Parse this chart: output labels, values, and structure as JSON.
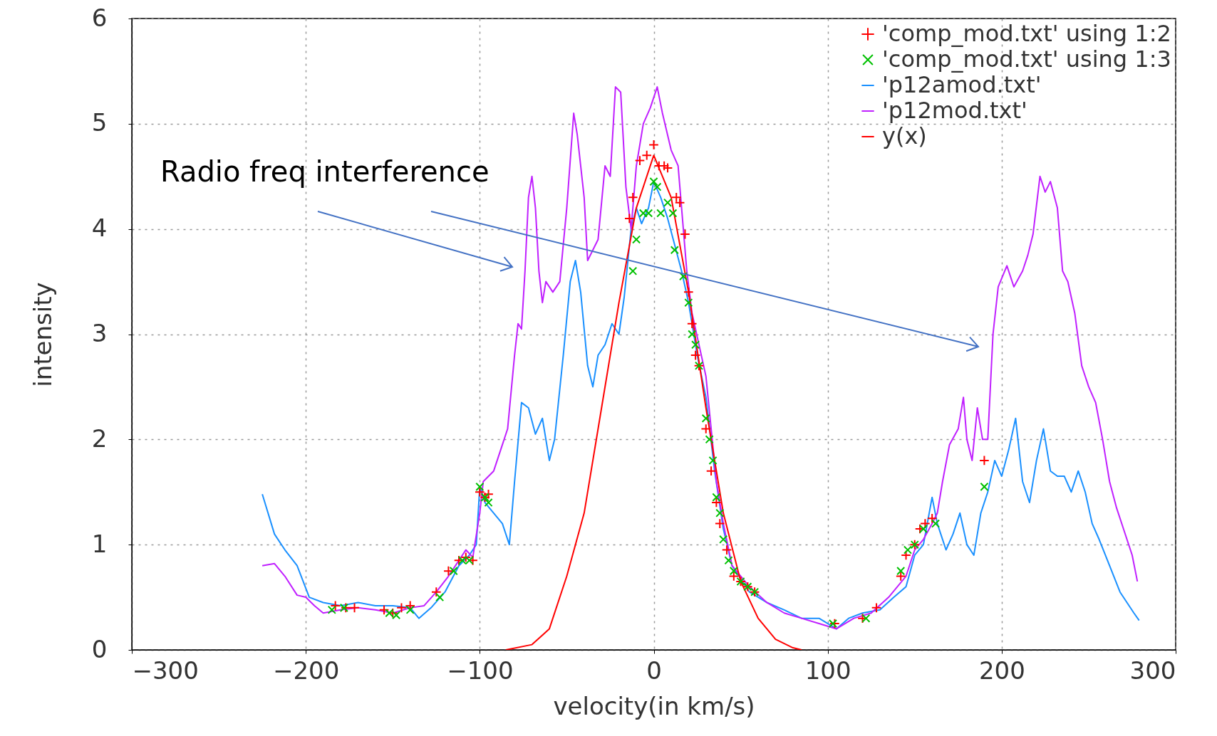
{
  "chart_data": {
    "type": "line",
    "xlabel": "velocity(in km/s)",
    "ylabel": "intensity",
    "xlim": [
      -300,
      300
    ],
    "ylim": [
      0,
      6
    ],
    "xticks": [
      -300,
      -200,
      -100,
      0,
      100,
      200,
      300
    ],
    "yticks": [
      0,
      1,
      2,
      3,
      4,
      5,
      6
    ],
    "grid": true,
    "legend": "top right",
    "annotations": [
      "Radio freq interference"
    ],
    "series": [
      {
        "name": "'comp_mod.txt' using 1:2",
        "type": "scatter",
        "marker": "cross",
        "color": "#ff0000",
        "x": [
          -183,
          -177,
          -172,
          -155,
          -150,
          -145,
          -140,
          -125,
          -118,
          -112,
          -108,
          -104,
          -100,
          -97,
          -95,
          -14,
          -12,
          -8,
          -4,
          0,
          3,
          6,
          8,
          13,
          15,
          18,
          20,
          22,
          24,
          26,
          30,
          33,
          36,
          38,
          42,
          46,
          50,
          54,
          58,
          104,
          120,
          128,
          142,
          145,
          150,
          153,
          156,
          160,
          190
        ],
        "values": [
          0.42,
          0.4,
          0.4,
          0.38,
          0.35,
          0.4,
          0.42,
          0.55,
          0.75,
          0.85,
          0.88,
          0.85,
          1.5,
          1.45,
          1.48,
          4.1,
          4.3,
          4.65,
          4.7,
          4.8,
          4.6,
          4.6,
          4.58,
          4.3,
          4.25,
          3.95,
          3.4,
          3.1,
          2.8,
          2.7,
          2.1,
          1.7,
          1.4,
          1.2,
          0.95,
          0.7,
          0.65,
          0.6,
          0.55,
          0.25,
          0.3,
          0.4,
          0.7,
          0.9,
          1.0,
          1.15,
          1.2,
          1.25,
          1.8
        ]
      },
      {
        "name": "'comp_mod.txt' using 1:3",
        "type": "scatter",
        "marker": "x",
        "color": "#00c000",
        "x": [
          -185,
          -178,
          -152,
          -148,
          -140,
          -123,
          -115,
          -110,
          -106,
          -100,
          -97,
          -95,
          -12,
          -10,
          -6,
          -3,
          0,
          2,
          4,
          8,
          11,
          12,
          17,
          20,
          22,
          24,
          26,
          30,
          32,
          34,
          36,
          38,
          40,
          43,
          46,
          50,
          54,
          58,
          103,
          122,
          142,
          146,
          150,
          155,
          162,
          190
        ],
        "values": [
          0.38,
          0.4,
          0.35,
          0.33,
          0.38,
          0.5,
          0.75,
          0.85,
          0.85,
          1.55,
          1.45,
          1.4,
          3.6,
          3.9,
          4.15,
          4.15,
          4.45,
          4.4,
          4.15,
          4.25,
          4.15,
          3.8,
          3.55,
          3.3,
          3.0,
          2.9,
          2.7,
          2.2,
          2.0,
          1.8,
          1.45,
          1.3,
          1.05,
          0.85,
          0.75,
          0.65,
          0.6,
          0.55,
          0.25,
          0.3,
          0.75,
          0.95,
          1.0,
          1.15,
          1.2,
          1.55
        ]
      },
      {
        "name": "'p12amod.txt'",
        "color": "#1a90ff",
        "x": [
          -225,
          -218,
          -212,
          -205,
          -198,
          -190,
          -180,
          -170,
          -160,
          -150,
          -140,
          -135,
          -128,
          -120,
          -112,
          -106,
          -102,
          -100,
          -97,
          -92,
          -87,
          -83,
          -80,
          -76,
          -72,
          -68,
          -64,
          -60,
          -57,
          -52,
          -48,
          -45,
          -42,
          -38,
          -35,
          -32,
          -28,
          -24,
          -20,
          -17,
          -13,
          -10,
          -7,
          -3,
          0,
          4,
          8,
          12,
          16,
          20,
          25,
          30,
          35,
          40,
          45,
          55,
          65,
          75,
          85,
          95,
          105,
          112,
          120,
          130,
          138,
          145,
          150,
          155,
          160,
          163,
          168,
          172,
          176,
          180,
          184,
          188,
          192,
          196,
          200,
          204,
          208,
          212,
          216,
          220,
          224,
          228,
          232,
          236,
          240,
          244,
          248,
          252,
          256,
          262,
          268,
          272,
          276,
          279
        ],
        "values": [
          1.48,
          1.1,
          0.95,
          0.8,
          0.5,
          0.45,
          0.42,
          0.45,
          0.42,
          0.42,
          0.4,
          0.3,
          0.4,
          0.55,
          0.8,
          0.9,
          1.0,
          1.55,
          1.4,
          1.3,
          1.2,
          1.0,
          1.6,
          2.35,
          2.3,
          2.05,
          2.2,
          1.8,
          2.0,
          2.8,
          3.5,
          3.7,
          3.4,
          2.7,
          2.5,
          2.8,
          2.9,
          3.1,
          3.0,
          3.35,
          4.0,
          4.2,
          4.05,
          4.2,
          4.45,
          4.3,
          4.1,
          3.85,
          3.6,
          3.3,
          2.8,
          2.4,
          1.7,
          1.15,
          0.8,
          0.55,
          0.45,
          0.38,
          0.3,
          0.3,
          0.2,
          0.3,
          0.35,
          0.38,
          0.5,
          0.6,
          0.9,
          1.0,
          1.45,
          1.2,
          0.95,
          1.1,
          1.3,
          1.0,
          0.9,
          1.3,
          1.5,
          1.8,
          1.65,
          1.9,
          2.2,
          1.6,
          1.4,
          1.8,
          2.1,
          1.7,
          1.65,
          1.65,
          1.5,
          1.7,
          1.5,
          1.2,
          1.05,
          0.8,
          0.55,
          0.45,
          0.35,
          0.28
        ]
      },
      {
        "name": "'p12mod.txt'",
        "color": "#c020ff",
        "x": [
          -225,
          -218,
          -212,
          -205,
          -200,
          -195,
          -190,
          -180,
          -170,
          -160,
          -150,
          -140,
          -132,
          -125,
          -118,
          -112,
          -108,
          -104,
          -100,
          -98,
          -92,
          -88,
          -84,
          -80,
          -78,
          -76,
          -74,
          -72,
          -70,
          -68,
          -66,
          -64,
          -62,
          -58,
          -54,
          -50,
          -46,
          -44,
          -40,
          -38,
          -35,
          -32,
          -28,
          -25,
          -22,
          -19,
          -16,
          -13,
          -10,
          -6,
          -2,
          2,
          5,
          10,
          14,
          17,
          19,
          22,
          30,
          36,
          40,
          45,
          55,
          65,
          75,
          85,
          95,
          105,
          115,
          125,
          135,
          145,
          150,
          155,
          160,
          163,
          166,
          170,
          175,
          178,
          180,
          183,
          186,
          189,
          192,
          195,
          198,
          203,
          207,
          212,
          215,
          218,
          222,
          225,
          228,
          232,
          235,
          238,
          242,
          246,
          250,
          254,
          258,
          262,
          266,
          270,
          275,
          278
        ],
        "values": [
          0.8,
          0.82,
          0.7,
          0.52,
          0.5,
          0.42,
          0.35,
          0.38,
          0.4,
          0.38,
          0.35,
          0.4,
          0.42,
          0.55,
          0.7,
          0.85,
          0.95,
          0.88,
          1.3,
          1.6,
          1.7,
          1.9,
          2.1,
          2.8,
          3.1,
          3.05,
          3.6,
          4.3,
          4.5,
          4.2,
          3.6,
          3.3,
          3.5,
          3.4,
          3.5,
          4.2,
          5.1,
          4.9,
          4.3,
          3.7,
          3.8,
          3.9,
          4.6,
          4.5,
          5.35,
          5.3,
          4.4,
          4.0,
          4.6,
          5.0,
          5.15,
          5.35,
          5.1,
          4.75,
          4.6,
          4.0,
          3.6,
          3.2,
          2.6,
          1.6,
          1.2,
          0.8,
          0.6,
          0.45,
          0.35,
          0.3,
          0.25,
          0.2,
          0.3,
          0.35,
          0.5,
          0.7,
          0.95,
          1.05,
          1.2,
          1.3,
          1.6,
          1.95,
          2.1,
          2.4,
          2.0,
          1.8,
          2.3,
          2.0,
          2.0,
          3.0,
          3.45,
          3.65,
          3.45,
          3.6,
          3.75,
          3.95,
          4.5,
          4.35,
          4.45,
          4.2,
          3.6,
          3.5,
          3.2,
          2.7,
          2.5,
          2.35,
          2.0,
          1.6,
          1.35,
          1.15,
          0.9,
          0.65
        ]
      },
      {
        "name": "y(x)",
        "color": "#ff0000",
        "x": [
          -85,
          -70,
          -60,
          -50,
          -40,
          -30,
          -20,
          -10,
          0,
          10,
          20,
          30,
          40,
          50,
          60,
          70,
          80,
          85
        ],
        "values": [
          0,
          0.05,
          0.2,
          0.7,
          1.3,
          2.3,
          3.3,
          4.2,
          4.7,
          4.3,
          3.4,
          2.3,
          1.3,
          0.65,
          0.3,
          0.1,
          0.02,
          0
        ]
      }
    ]
  }
}
